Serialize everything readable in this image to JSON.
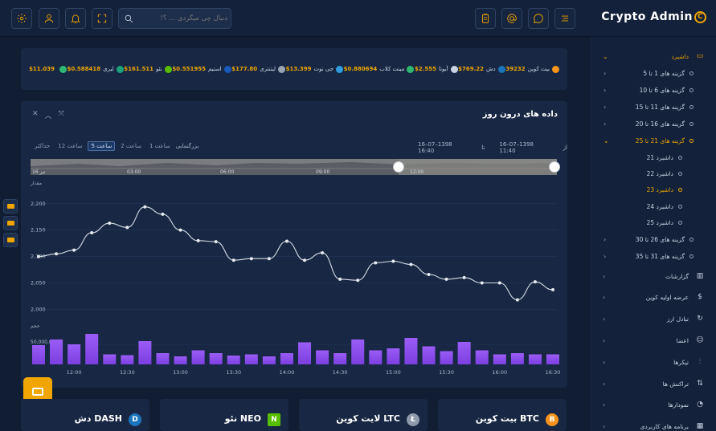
{
  "brand": {
    "name": "Crypto Admin",
    "logo_glyph": "C"
  },
  "search": {
    "placeholder": "دنبال چی میگردی ... ؟!"
  },
  "sidebar": {
    "dashboard": "داشبرد",
    "groups": [
      "گزینه های 1 تا 5",
      "گزینه های 6 تا 10",
      "گزینه های 11 تا 15",
      "گزینه های 16 تا 20",
      "گزینه های 21 تا 25"
    ],
    "sub": [
      "داشبرد 21",
      "داشبرد 22",
      "داشبرد 23",
      "داشبرد 24",
      "داشبرد 25"
    ],
    "groups2": [
      "گزینه های 26 تا 30",
      "گزینه های 31 تا 35"
    ],
    "menu": [
      "گزارشات",
      "عرضه اولیه کوین",
      "تبادل ارز",
      "اعضا",
      "تیکرها",
      "تراکنش ها",
      "نمودارها",
      "برنامه های کاربردی"
    ]
  },
  "ticker": [
    {
      "name": "بیت کوین",
      "price": "39232",
      "color": "#f7931a"
    },
    {
      "name": "دش",
      "price": "$769.22",
      "color": "#1c75bc"
    },
    {
      "name": "آیوتا",
      "price": "$2.555",
      "color": "#c9d3e3"
    },
    {
      "name": "مینت کلاب",
      "price": "$0.880694",
      "color": "#2eb872"
    },
    {
      "name": "جی نوت",
      "price": "$13.399",
      "color": "#2f9fe0"
    },
    {
      "name": "لیتنتری",
      "price": "$177.80",
      "color": "#9aa4b4"
    },
    {
      "name": "استیم",
      "price": "$0.551955",
      "color": "#1a5bb8"
    },
    {
      "name": "نئو",
      "price": "$161.511",
      "color": "#58bf00"
    },
    {
      "name": "لیری",
      "price": "$0.588418",
      "color": "#1ba27a"
    },
    {
      "name": "",
      "price": "$11.039",
      "color": "#2eb872"
    }
  ],
  "chart": {
    "title": "داده های درون روز",
    "zoom_label": "بزرگنمایی",
    "zoom_options": [
      "1 ساعت",
      "2 ساعت",
      "5 ساعت",
      "12 ساعت",
      "حداکثر"
    ],
    "selected_zoom": "5 ساعت",
    "from_label": "از",
    "from_value": "16–07–1398 11:40",
    "to_label": "تا",
    "to_value": "16–07–1398 16:40",
    "price_axis_label": "مقدار",
    "volume_axis_label": "حجم",
    "navigator_labels": [
      "تیر 16",
      "03:00",
      "06:00",
      "09:00",
      "12:00"
    ]
  },
  "chart_data": {
    "type": "line",
    "title": "داده های درون روز",
    "x": [
      "11:40",
      "11:50",
      "12:00",
      "12:10",
      "12:20",
      "12:30",
      "12:40",
      "12:50",
      "13:00",
      "13:10",
      "13:20",
      "13:30",
      "13:40",
      "13:50",
      "14:00",
      "14:10",
      "14:20",
      "14:30",
      "14:40",
      "14:50",
      "15:00",
      "15:10",
      "15:20",
      "15:30",
      "15:40",
      "15:50",
      "16:00",
      "16:10",
      "16:20",
      "16:30"
    ],
    "series": [
      {
        "values": [
          2100,
          2105,
          2112,
          2145,
          2163,
          2155,
          2194,
          2180,
          2150,
          2130,
          2128,
          2093,
          2096,
          2096,
          2129,
          2093,
          2107,
          2057,
          2055,
          2088,
          2091,
          2085,
          2066,
          2057,
          2060,
          2050,
          2050,
          2018,
          2052,
          2037
        ]
      },
      {
        "values": [
          48,
          62,
          50,
          76,
          25,
          23,
          58,
          28,
          20,
          35,
          28,
          22,
          25,
          20,
          28,
          55,
          35,
          28,
          62,
          35,
          40,
          66,
          45,
          33,
          56,
          35,
          25,
          28,
          25,
          25
        ]
      }
    ],
    "ylabel": "مقدار",
    "ylim": [
      1990,
      2230
    ],
    "yticks": [
      "2,000",
      "2,050",
      "2,100",
      "2,150",
      "2,200"
    ],
    "volume_ylabel": "حجم",
    "volume_tick": "50,000,000",
    "xticks": [
      "12:00",
      "12:30",
      "13:00",
      "13:30",
      "14:00",
      "14:30",
      "15:00",
      "15:30",
      "16:00",
      "16:30"
    ]
  },
  "coins": [
    {
      "name": "بیت کوین BTC",
      "color": "#f7931a",
      "glyph": "B"
    },
    {
      "name": "لایت کوین LTC",
      "color": "#8e99ab",
      "glyph": "Ł"
    },
    {
      "name": "نئو NEO",
      "color": "#58bf00",
      "glyph": "N"
    },
    {
      "name": "دش DASH",
      "color": "#1c75bc",
      "glyph": "D"
    }
  ]
}
